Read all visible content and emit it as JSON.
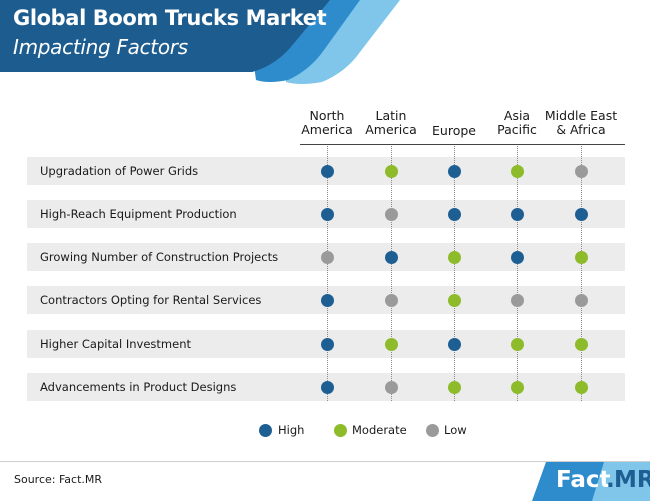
{
  "header": {
    "title": "Global Boom Trucks Market",
    "subtitle": "Impacting Factors"
  },
  "regions": [
    "North\nAmerica",
    "Latin\nAmerica",
    "Europe",
    "Asia\nPacific",
    "Middle East\n& Africa"
  ],
  "factors": [
    {
      "label": "Upgradation of Power Grids",
      "ratings": [
        "high",
        "moderate",
        "high",
        "moderate",
        "low"
      ]
    },
    {
      "label": "High-Reach Equipment Production",
      "ratings": [
        "high",
        "low",
        "high",
        "high",
        "high"
      ]
    },
    {
      "label": "Growing Number of Construction Projects",
      "ratings": [
        "low",
        "high",
        "moderate",
        "high",
        "moderate"
      ]
    },
    {
      "label": "Contractors Opting for Rental Services",
      "ratings": [
        "high",
        "low",
        "moderate",
        "low",
        "low"
      ]
    },
    {
      "label": "Higher Capital Investment",
      "ratings": [
        "high",
        "moderate",
        "high",
        "moderate",
        "moderate"
      ]
    },
    {
      "label": "Advancements in Product Designs",
      "ratings": [
        "high",
        "low",
        "moderate",
        "moderate",
        "moderate"
      ]
    }
  ],
  "legend": {
    "high": "High",
    "moderate": "Moderate",
    "low": "Low"
  },
  "colors": {
    "high": "#1e5f93",
    "moderate": "#8dbb2a",
    "low": "#9a9a9a",
    "header_dark": "#1d5c8e",
    "header_mid": "#2e8ccd",
    "header_light": "#7fc6ea"
  },
  "footer": {
    "source": "Source: Fact.MR",
    "logo_fact": "Fact",
    "logo_dot": ".",
    "logo_mr": "MR"
  }
}
